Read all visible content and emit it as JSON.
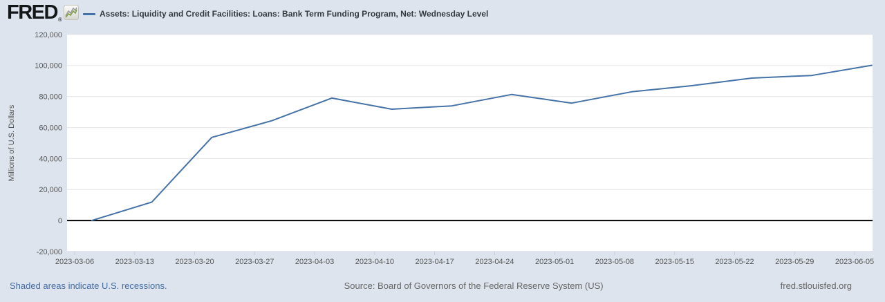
{
  "header": {
    "logo_text": "FRED",
    "registered_mark": "®",
    "icons": {
      "logo_chart_icon": "sparkline-icon"
    }
  },
  "chart_data": {
    "type": "line",
    "title": "Assets: Liquidity and Credit Facilities: Loans: Bank Term Funding Program, Net: Wednesday Level",
    "ylabel": "Millions of U.S. Dollars",
    "xlabel": "",
    "ylim": [
      -20000,
      120000
    ],
    "y_tick_step": 20000,
    "y_tick_labels": [
      "120,000",
      "100,000",
      "80,000",
      "60,000",
      "40,000",
      "20,000",
      "0",
      "-20,000"
    ],
    "x_tick_labels": [
      "2023-03-06",
      "2023-03-13",
      "2023-03-20",
      "2023-03-27",
      "2023-04-03",
      "2023-04-10",
      "2023-04-17",
      "2023-04-24",
      "2023-05-01",
      "2023-05-08",
      "2023-05-15",
      "2023-05-22",
      "2023-05-29",
      "2023-06-05"
    ],
    "grid": true,
    "zero_line": true,
    "legend_position": "top-left",
    "line_color": "#4572a7",
    "series": [
      {
        "name": "Assets: Liquidity and Credit Facilities: Loans: Bank Term Funding Program, Net: Wednesday Level",
        "dates": [
          "2023-03-08",
          "2023-03-15",
          "2023-03-22",
          "2023-03-29",
          "2023-04-05",
          "2023-04-12",
          "2023-04-19",
          "2023-04-26",
          "2023-05-03",
          "2023-05-10",
          "2023-05-17",
          "2023-05-24",
          "2023-05-31",
          "2023-06-07"
        ],
        "values": [
          0,
          11943,
          53669,
          64403,
          79021,
          71837,
          73982,
          81327,
          75778,
          83101,
          87006,
          91907,
          93615,
          100161
        ]
      }
    ]
  },
  "footer": {
    "recessions_note": "Shaded areas indicate U.S. recessions.",
    "source": "Source: Board of Governors of the Federal Reserve System (US)",
    "site": "fred.stlouisfed.org"
  },
  "colors": {
    "series_line": "#4572a7",
    "link_blue": "#446ca6",
    "axis_label_gray": "#555555",
    "background": "#dde4ed"
  }
}
